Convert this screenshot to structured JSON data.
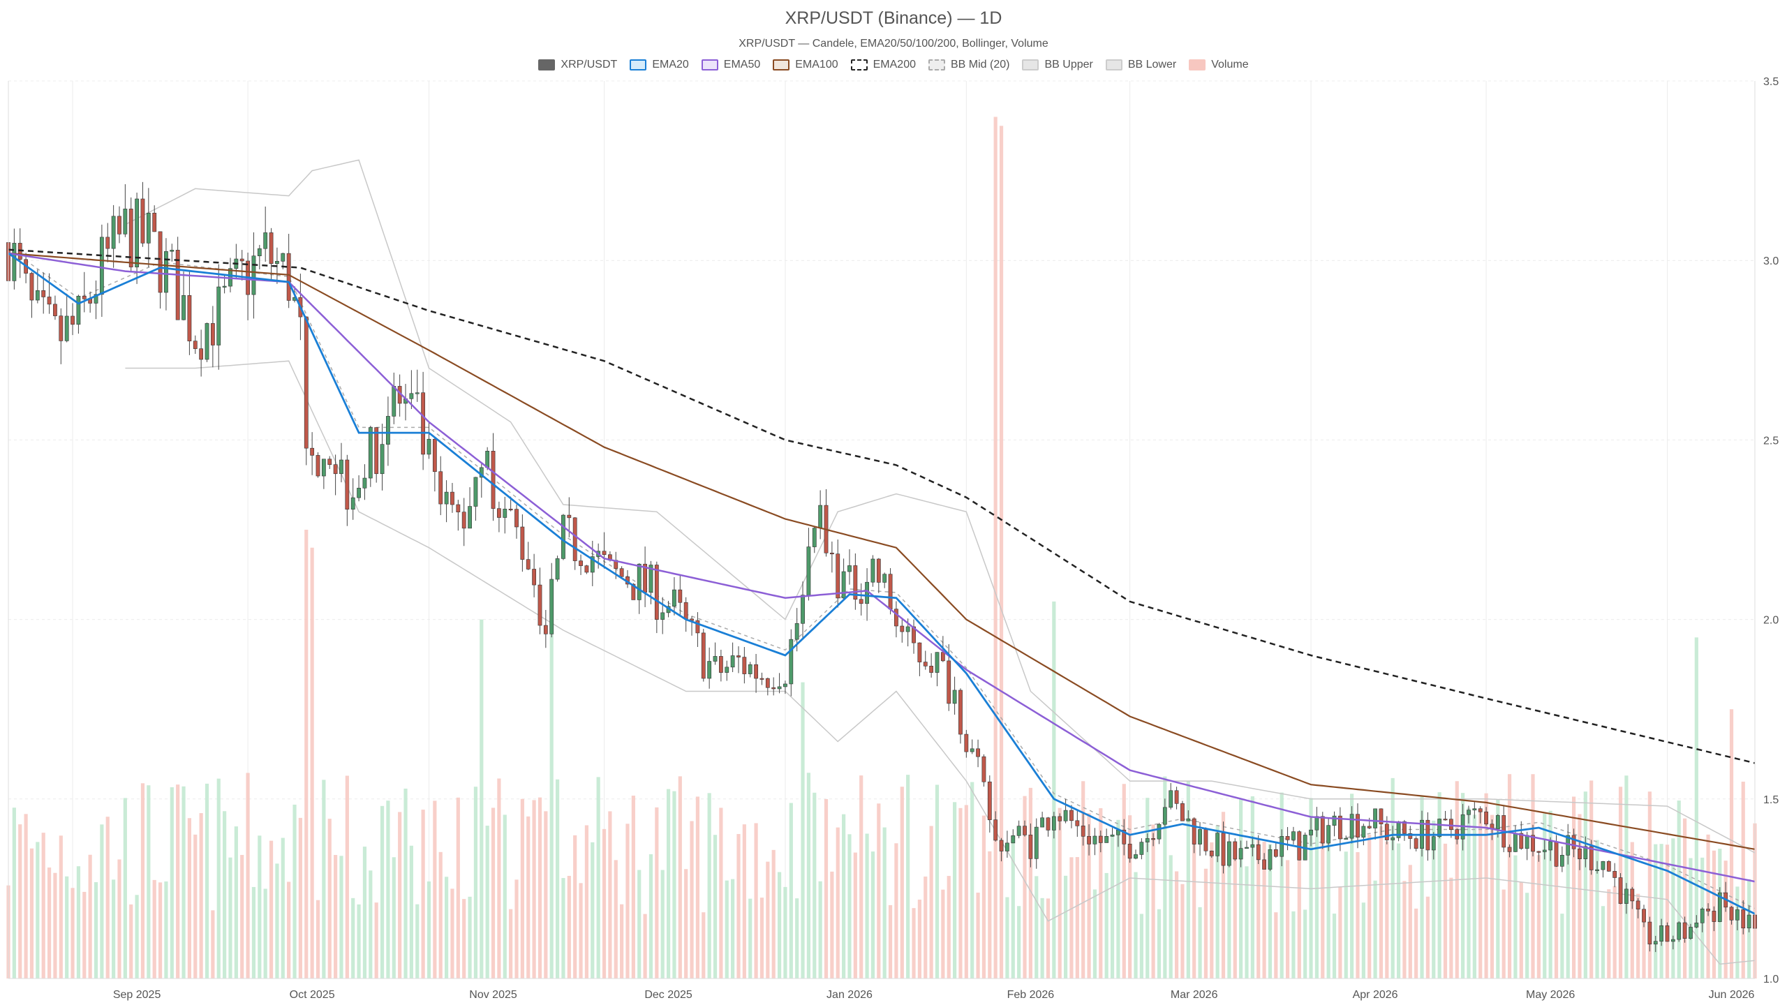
{
  "chart": {
    "title": "XRP/USDT (Binance) — 1D",
    "subtitle": "XRP/USDT — Candele, EMA20/50/100/200, Bollinger, Volume"
  },
  "legend": [
    {
      "label": "XRP/USDT",
      "key": "price",
      "color": "#666666",
      "fill": "#666666",
      "style": "solid"
    },
    {
      "label": "EMA20",
      "key": "ema20",
      "color": "#1a7fd6",
      "fill": "#d6ecfb",
      "style": "solid"
    },
    {
      "label": "EMA50",
      "key": "ema50",
      "color": "#8c5fd6",
      "fill": "#ece4fa",
      "style": "solid"
    },
    {
      "label": "EMA100",
      "key": "ema100",
      "color": "#8a4b22",
      "fill": "#f1e6dc",
      "style": "solid"
    },
    {
      "label": "EMA200",
      "key": "ema200",
      "color": "#222222",
      "fill": "#ffffff",
      "style": "dashed"
    },
    {
      "label": "BB Mid (20)",
      "key": "bbmid",
      "color": "#aaaaaa",
      "fill": "#eeeeee",
      "style": "dashed"
    },
    {
      "label": "BB Upper",
      "key": "bbupper",
      "color": "#cccccc",
      "fill": "#e6e6e6",
      "style": "solid"
    },
    {
      "label": "BB Lower",
      "key": "bblower",
      "color": "#cccccc",
      "fill": "#e6e6e6",
      "style": "solid"
    },
    {
      "label": "Volume",
      "key": "volume",
      "color": "#f7c7c0",
      "fill": "#f7c7c0",
      "style": "solid"
    }
  ],
  "colors": {
    "up": "#4e9a6a",
    "down": "#c0584a",
    "vol_up": "#bfe8cf",
    "vol_down": "#f7c7c0",
    "grid": "#ececec"
  },
  "chart_data": {
    "type": "candlestick",
    "x_ticks": [
      "Sep 2025",
      "Oct 2025",
      "Nov 2025",
      "Dec 2025",
      "Jan 2026",
      "Feb 2026",
      "Mar 2026",
      "Apr 2026",
      "May 2026",
      "Jun 2026"
    ],
    "x_range": [
      "2025-08-21",
      "2026-06-16"
    ],
    "ylim": [
      1.0,
      3.5
    ],
    "y_ticks": [
      "1.0",
      "1.5",
      "2.0",
      "2.5",
      "3.0",
      "3.5"
    ],
    "y_axis_side": "right",
    "grid": true,
    "legend_position": "top-center",
    "price_anchors": [
      [
        "2025-08-21",
        3.05
      ],
      [
        "2025-08-25",
        2.85
      ],
      [
        "2025-08-29",
        2.78
      ],
      [
        "2025-09-02",
        2.82
      ],
      [
        "2025-09-06",
        2.98
      ],
      [
        "2025-09-10",
        3.08
      ],
      [
        "2025-09-14",
        3.05
      ],
      [
        "2025-09-18",
        2.95
      ],
      [
        "2025-09-22",
        2.8
      ],
      [
        "2025-09-26",
        2.85
      ],
      [
        "2025-09-30",
        2.95
      ],
      [
        "2025-10-04",
        3.02
      ],
      [
        "2025-10-08",
        2.95
      ],
      [
        "2025-10-10",
        2.78
      ],
      [
        "2025-10-11",
        2.4
      ],
      [
        "2025-10-14",
        2.52
      ],
      [
        "2025-10-18",
        2.38
      ],
      [
        "2025-10-22",
        2.45
      ],
      [
        "2025-10-26",
        2.62
      ],
      [
        "2025-10-30",
        2.55
      ],
      [
        "2025-11-03",
        2.3
      ],
      [
        "2025-11-07",
        2.28
      ],
      [
        "2025-11-10",
        2.48
      ],
      [
        "2025-11-14",
        2.3
      ],
      [
        "2025-11-18",
        2.18
      ],
      [
        "2025-11-21",
        1.97
      ],
      [
        "2025-11-24",
        2.22
      ],
      [
        "2025-11-28",
        2.2
      ],
      [
        "2025-12-02",
        2.12
      ],
      [
        "2025-12-05",
        2.12
      ],
      [
        "2025-12-09",
        2.08
      ],
      [
        "2025-12-13",
        2.03
      ],
      [
        "2025-12-17",
        1.92
      ],
      [
        "2025-12-20",
        1.85
      ],
      [
        "2025-12-24",
        1.88
      ],
      [
        "2025-12-28",
        1.85
      ],
      [
        "2026-01-01",
        1.87
      ],
      [
        "2026-01-04",
        2.05
      ],
      [
        "2026-01-06",
        2.33
      ],
      [
        "2026-01-08",
        2.18
      ],
      [
        "2026-01-12",
        2.08
      ],
      [
        "2026-01-16",
        2.15
      ],
      [
        "2026-01-19",
        2.04
      ],
      [
        "2026-01-22",
        1.92
      ],
      [
        "2026-01-26",
        1.9
      ],
      [
        "2026-01-30",
        1.8
      ],
      [
        "2026-02-02",
        1.62
      ],
      [
        "2026-02-05",
        1.45
      ],
      [
        "2026-02-06",
        1.38
      ],
      [
        "2026-02-09",
        1.4
      ],
      [
        "2026-02-12",
        1.38
      ],
      [
        "2026-02-16",
        1.48
      ],
      [
        "2026-02-20",
        1.42
      ],
      [
        "2026-02-24",
        1.38
      ],
      [
        "2026-02-28",
        1.37
      ],
      [
        "2026-03-04",
        1.4
      ],
      [
        "2026-03-07",
        1.5
      ],
      [
        "2026-03-10",
        1.45
      ],
      [
        "2026-03-14",
        1.38
      ],
      [
        "2026-03-18",
        1.34
      ],
      [
        "2026-03-22",
        1.33
      ],
      [
        "2026-03-26",
        1.37
      ],
      [
        "2026-03-30",
        1.37
      ],
      [
        "2026-04-03",
        1.42
      ],
      [
        "2026-04-07",
        1.44
      ],
      [
        "2026-04-11",
        1.44
      ],
      [
        "2026-04-15",
        1.4
      ],
      [
        "2026-04-19",
        1.4
      ],
      [
        "2026-04-23",
        1.4
      ],
      [
        "2026-04-27",
        1.44
      ],
      [
        "2026-05-01",
        1.46
      ],
      [
        "2026-05-05",
        1.4
      ],
      [
        "2026-05-09",
        1.38
      ],
      [
        "2026-05-13",
        1.36
      ],
      [
        "2026-05-17",
        1.35
      ],
      [
        "2026-05-21",
        1.33
      ],
      [
        "2026-05-25",
        1.22
      ],
      [
        "2026-05-28",
        1.12
      ],
      [
        "2026-05-31",
        1.11
      ],
      [
        "2026-06-04",
        1.13
      ],
      [
        "2026-06-08",
        1.18
      ],
      [
        "2026-06-10",
        1.22
      ],
      [
        "2026-06-13",
        1.17
      ],
      [
        "2026-06-16",
        1.14
      ]
    ],
    "ema200_anchors": [
      [
        "2025-08-21",
        3.03
      ],
      [
        "2025-10-10",
        2.98
      ],
      [
        "2025-11-01",
        2.86
      ],
      [
        "2025-12-01",
        2.72
      ],
      [
        "2026-01-01",
        2.5
      ],
      [
        "2026-01-20",
        2.43
      ],
      [
        "2026-02-01",
        2.34
      ],
      [
        "2026-03-01",
        2.05
      ],
      [
        "2026-04-01",
        1.9
      ],
      [
        "2026-05-01",
        1.78
      ],
      [
        "2026-06-16",
        1.6
      ]
    ],
    "ema100_anchors": [
      [
        "2025-08-21",
        3.02
      ],
      [
        "2025-10-08",
        2.96
      ],
      [
        "2025-11-01",
        2.75
      ],
      [
        "2025-12-01",
        2.48
      ],
      [
        "2026-01-01",
        2.28
      ],
      [
        "2026-01-20",
        2.2
      ],
      [
        "2026-02-01",
        2.0
      ],
      [
        "2026-03-01",
        1.73
      ],
      [
        "2026-04-01",
        1.54
      ],
      [
        "2026-05-01",
        1.49
      ],
      [
        "2026-06-16",
        1.36
      ]
    ],
    "ema50_anchors": [
      [
        "2025-08-21",
        3.02
      ],
      [
        "2025-09-10",
        2.97
      ],
      [
        "2025-10-08",
        2.94
      ],
      [
        "2025-11-01",
        2.55
      ],
      [
        "2025-12-01",
        2.17
      ],
      [
        "2026-01-01",
        2.06
      ],
      [
        "2026-01-15",
        2.08
      ],
      [
        "2026-02-01",
        1.86
      ],
      [
        "2026-03-01",
        1.58
      ],
      [
        "2026-04-01",
        1.45
      ],
      [
        "2026-05-01",
        1.42
      ],
      [
        "2026-06-16",
        1.27
      ]
    ],
    "ema20_anchors": [
      [
        "2025-08-21",
        3.02
      ],
      [
        "2025-09-02",
        2.88
      ],
      [
        "2025-09-16",
        2.98
      ],
      [
        "2025-10-08",
        2.94
      ],
      [
        "2025-10-20",
        2.52
      ],
      [
        "2025-11-01",
        2.52
      ],
      [
        "2025-11-24",
        2.22
      ],
      [
        "2025-12-15",
        2.0
      ],
      [
        "2026-01-01",
        1.9
      ],
      [
        "2026-01-12",
        2.07
      ],
      [
        "2026-01-20",
        2.06
      ],
      [
        "2026-02-01",
        1.85
      ],
      [
        "2026-02-16",
        1.5
      ],
      [
        "2026-03-01",
        1.4
      ],
      [
        "2026-03-10",
        1.43
      ],
      [
        "2026-04-01",
        1.36
      ],
      [
        "2026-04-15",
        1.4
      ],
      [
        "2026-05-01",
        1.4
      ],
      [
        "2026-05-10",
        1.42
      ],
      [
        "2026-06-01",
        1.3
      ],
      [
        "2026-06-16",
        1.18
      ]
    ],
    "bb_upper_anchors": [
      [
        "2025-09-10",
        3.1
      ],
      [
        "2025-09-22",
        3.2
      ],
      [
        "2025-10-08",
        3.18
      ],
      [
        "2025-10-12",
        3.25
      ],
      [
        "2025-10-20",
        3.28
      ],
      [
        "2025-11-01",
        2.7
      ],
      [
        "2025-11-15",
        2.55
      ],
      [
        "2025-11-24",
        2.32
      ],
      [
        "2025-12-10",
        2.3
      ],
      [
        "2026-01-01",
        2.0
      ],
      [
        "2026-01-10",
        2.3
      ],
      [
        "2026-01-20",
        2.35
      ],
      [
        "2026-02-01",
        2.3
      ],
      [
        "2026-02-12",
        1.8
      ],
      [
        "2026-03-01",
        1.55
      ],
      [
        "2026-03-15",
        1.55
      ],
      [
        "2026-04-01",
        1.5
      ],
      [
        "2026-05-01",
        1.5
      ],
      [
        "2026-06-01",
        1.48
      ],
      [
        "2026-06-16",
        1.35
      ]
    ],
    "bb_lower_anchors": [
      [
        "2025-09-10",
        2.7
      ],
      [
        "2025-09-22",
        2.7
      ],
      [
        "2025-10-08",
        2.72
      ],
      [
        "2025-10-20",
        2.3
      ],
      [
        "2025-11-01",
        2.2
      ],
      [
        "2025-11-24",
        1.97
      ],
      [
        "2025-12-15",
        1.8
      ],
      [
        "2026-01-01",
        1.8
      ],
      [
        "2026-01-10",
        1.66
      ],
      [
        "2026-01-20",
        1.8
      ],
      [
        "2026-02-01",
        1.55
      ],
      [
        "2026-02-15",
        1.16
      ],
      [
        "2026-03-01",
        1.28
      ],
      [
        "2026-04-01",
        1.25
      ],
      [
        "2026-05-01",
        1.28
      ],
      [
        "2026-06-01",
        1.22
      ],
      [
        "2026-06-10",
        1.04
      ],
      [
        "2026-06-16",
        1.05
      ]
    ],
    "volume_spikes": [
      [
        "2025-10-11",
        0.5
      ],
      [
        "2025-10-12",
        0.48
      ],
      [
        "2025-11-10",
        0.4
      ],
      [
        "2025-11-22",
        0.39
      ],
      [
        "2026-01-04",
        0.33
      ],
      [
        "2026-02-06",
        0.96
      ],
      [
        "2026-02-07",
        0.95
      ],
      [
        "2026-02-16",
        0.42
      ],
      [
        "2026-06-06",
        0.38
      ],
      [
        "2026-06-12",
        0.3
      ]
    ]
  }
}
